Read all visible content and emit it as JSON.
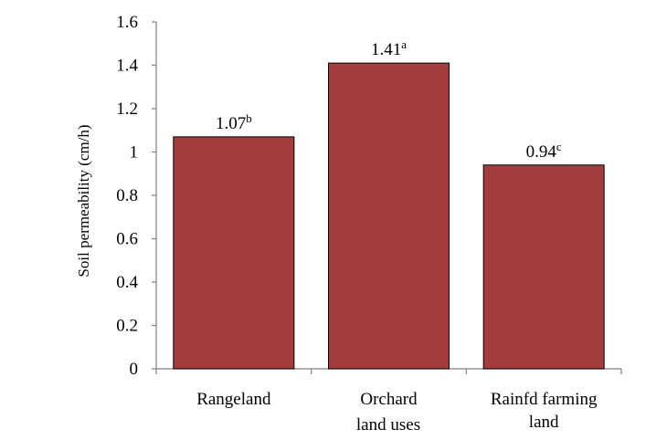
{
  "chart_data": {
    "type": "bar",
    "title": "",
    "xlabel": "land uses",
    "ylabel": "Soil permeability (cm/h)",
    "ylim": [
      0,
      1.6
    ],
    "yticks": [
      "0",
      "0.2",
      "0.4",
      "0.6",
      "0.8",
      "1",
      "1.2",
      "1.4",
      "1.6"
    ],
    "grid": false,
    "categories": [
      {
        "lines": [
          "Rangeland"
        ]
      },
      {
        "lines": [
          "Orchard"
        ]
      },
      {
        "lines": [
          "Rainfd farming",
          "land"
        ]
      }
    ],
    "values": [
      1.07,
      1.41,
      0.94
    ],
    "data_labels": [
      {
        "value": "1.07",
        "sup": "b"
      },
      {
        "value": "1.41",
        "sup": "a"
      },
      {
        "value": "0.94",
        "sup": "c"
      }
    ],
    "colors": {
      "bar": "#a33d3d",
      "bar_edge": "#000000",
      "axis": "#808080"
    }
  }
}
